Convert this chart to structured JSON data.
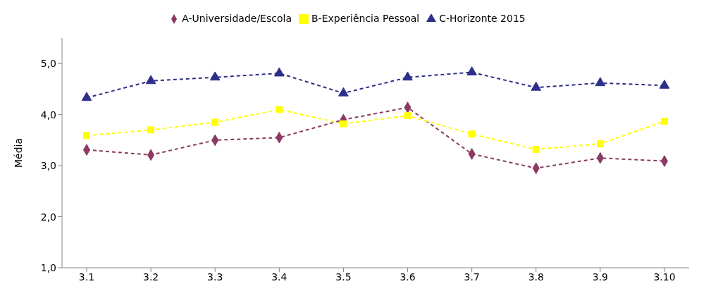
{
  "chart_data": {
    "type": "line",
    "ylabel": "Média",
    "categories": [
      "3.1",
      "3.2",
      "3.3",
      "3.4",
      "3.5",
      "3.6",
      "3.7",
      "3.8",
      "3.9",
      "3.10"
    ],
    "series": [
      {
        "name": "A-Universidade/Escola",
        "color": "#8b3a62",
        "marker": "diamond",
        "values": [
          3.31,
          3.21,
          3.5,
          3.55,
          3.9,
          4.14,
          3.23,
          2.95,
          3.15,
          3.09
        ]
      },
      {
        "name": "B-Experiência Pessoal",
        "color": "#ffff00",
        "marker": "square",
        "values": [
          3.59,
          3.7,
          3.85,
          4.1,
          3.82,
          3.98,
          3.62,
          3.32,
          3.43,
          3.87
        ]
      },
      {
        "name": "C-Horizonte 2015",
        "color": "#2e2e8b",
        "marker": "triangle",
        "values": [
          4.33,
          4.66,
          4.73,
          4.81,
          4.42,
          4.73,
          4.83,
          4.53,
          4.62,
          4.57
        ]
      }
    ],
    "ylim": [
      1,
      5.5
    ],
    "yticks": [
      {
        "value": 1,
        "label": "1,0"
      },
      {
        "value": 2,
        "label": "2,0"
      },
      {
        "value": 3,
        "label": "3,0"
      },
      {
        "value": 4,
        "label": "4,0"
      },
      {
        "value": 5,
        "label": "5,0"
      }
    ],
    "grid": false,
    "legend": "top",
    "line_style": "dashed"
  }
}
